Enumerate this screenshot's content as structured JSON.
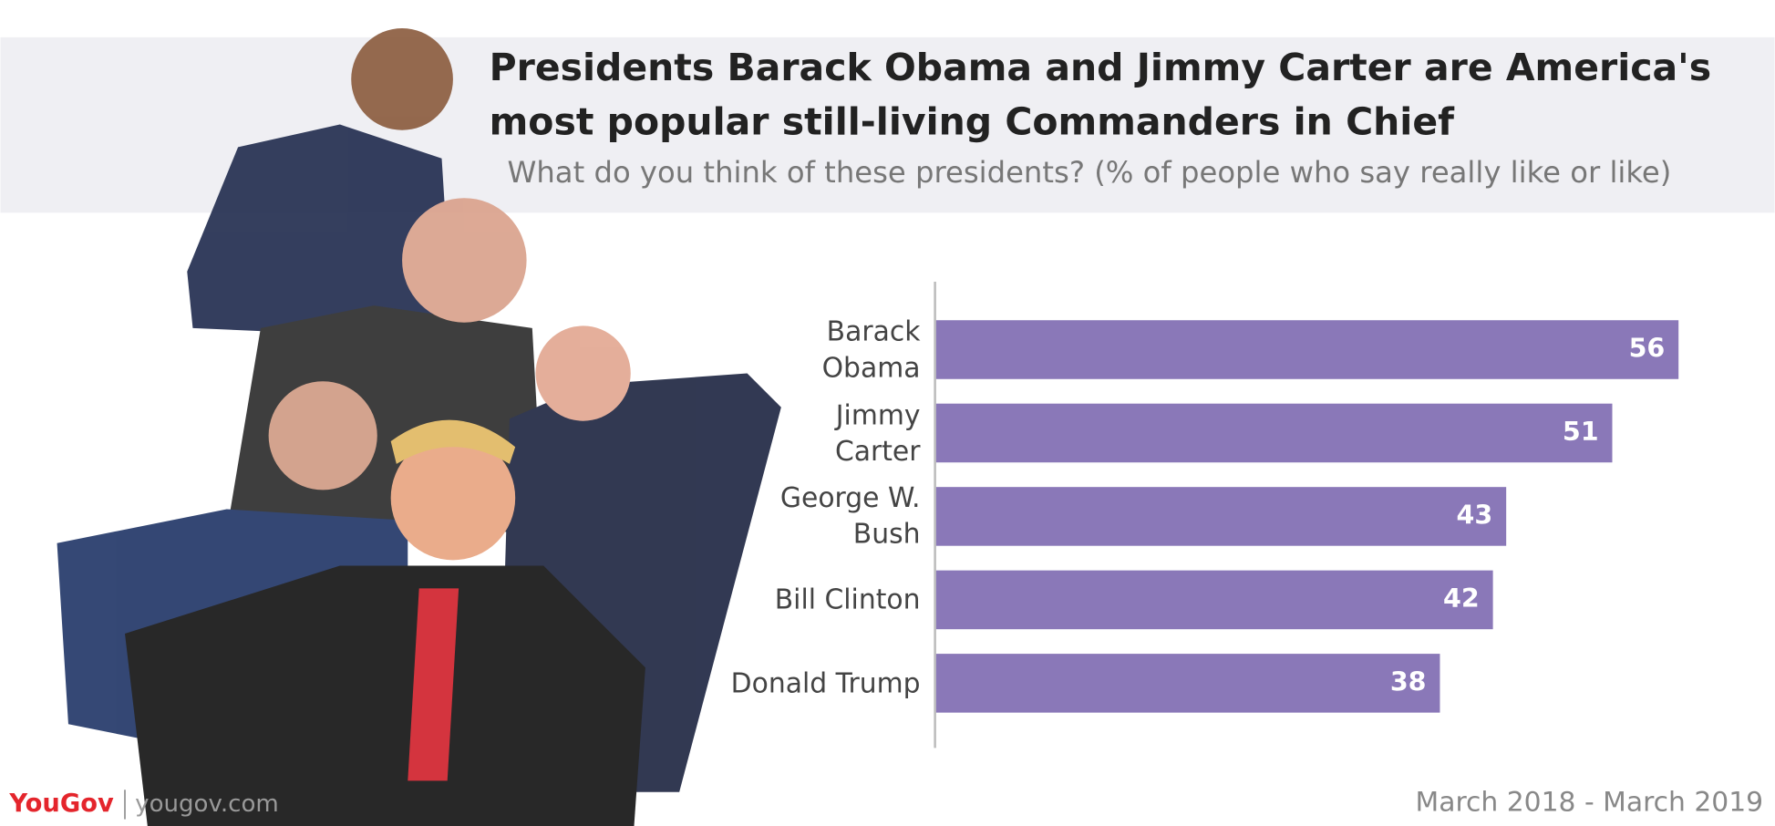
{
  "chart_data": {
    "type": "hbar",
    "title": "Presidents Barack Obama and Jimmy Carter are America's\nmost popular still-living Commanders in Chief",
    "subtitle": "What do you think of these presidents? (% of people who say really like or like)",
    "categories": [
      "Barack\nObama",
      "Jimmy\nCarter",
      "George W.\nBush",
      "Bill Clinton",
      "Donald Trump"
    ],
    "values": [
      56,
      51,
      43,
      42,
      38
    ],
    "color": "#8a78b8",
    "xlim": [
      0,
      60
    ],
    "brand": "YouGov",
    "site": "yougov.com",
    "date_range": "March 2018 - March 2019"
  }
}
